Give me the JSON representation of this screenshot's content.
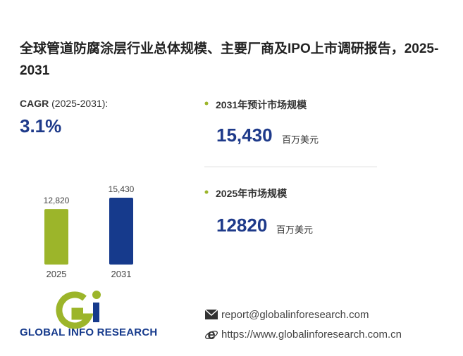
{
  "title": "全球管道防腐涂层行业总体规模、主要厂商及IPO上市调研报告，2025-2031",
  "cagr": {
    "label": "CAGR",
    "period": "(2025-2031):",
    "value": "3.1%"
  },
  "stats": [
    {
      "label": "2031年预计市场规模",
      "value": "15,430",
      "unit": "百万美元"
    },
    {
      "label": "2025年市场规模",
      "value": "12820",
      "unit": "百万美元"
    }
  ],
  "chart_data": {
    "type": "bar",
    "categories": [
      "2025",
      "2031"
    ],
    "values": [
      12820,
      15430
    ],
    "value_labels": [
      "12,820",
      "15,430"
    ],
    "colors": [
      "#9cb52a",
      "#163a8c"
    ],
    "ylim": [
      0,
      16000
    ]
  },
  "logo": {
    "text": "GLOBAL INFO RESEARCH"
  },
  "contact": {
    "email": "report@globalinforesearch.com",
    "website": "https://www.globalinforesearch.com.cn"
  }
}
